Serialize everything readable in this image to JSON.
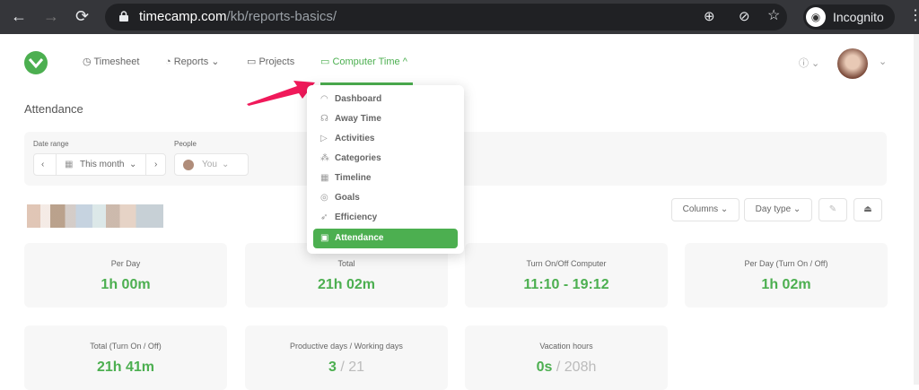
{
  "browser": {
    "url_host": "timecamp.com",
    "url_path": "/kb/reports-basics/",
    "profile": "Incognito"
  },
  "nav": {
    "items": [
      {
        "label": "Timesheet",
        "icon": "clock-icon"
      },
      {
        "label": "Reports",
        "icon": "chart-icon"
      },
      {
        "label": "Projects",
        "icon": "folder-icon"
      },
      {
        "label": "Computer Time",
        "icon": "laptop-icon",
        "active": true
      }
    ]
  },
  "menu": {
    "items": [
      {
        "label": "Dashboard",
        "icon": "gauge-icon"
      },
      {
        "label": "Away Time",
        "icon": "away-icon"
      },
      {
        "label": "Activities",
        "icon": "cursor-icon"
      },
      {
        "label": "Categories",
        "icon": "hierarchy-icon"
      },
      {
        "label": "Timeline",
        "icon": "calendar-icon"
      },
      {
        "label": "Goals",
        "icon": "target-icon"
      },
      {
        "label": "Efficiency",
        "icon": "rocket-icon"
      },
      {
        "label": "Attendance",
        "icon": "briefcase-icon",
        "active": true
      }
    ]
  },
  "page": {
    "title": "Attendance"
  },
  "filters": {
    "date_label": "Date range",
    "date_value": "This month",
    "people_label": "People",
    "people_value": "You"
  },
  "toolbar": {
    "columns": "Columns",
    "day_type": "Day type"
  },
  "cards": [
    {
      "label": "Per Day",
      "value": "1h 00m"
    },
    {
      "label": "Total",
      "value": "21h 02m"
    },
    {
      "label": "Turn On/Off Computer",
      "value": "11:10 - 19:12"
    },
    {
      "label": "Per Day (Turn On / Off)",
      "value": "1h 02m"
    },
    {
      "label": "Total (Turn On / Off)",
      "value": "21h 41m"
    },
    {
      "label": "Productive days / Working days",
      "value": "3",
      "secondary": "21"
    },
    {
      "label": "Vacation hours",
      "value": "0s",
      "secondary": "208h"
    }
  ],
  "colors": {
    "accent": "#4caf50",
    "arrow": "#f0195a"
  }
}
